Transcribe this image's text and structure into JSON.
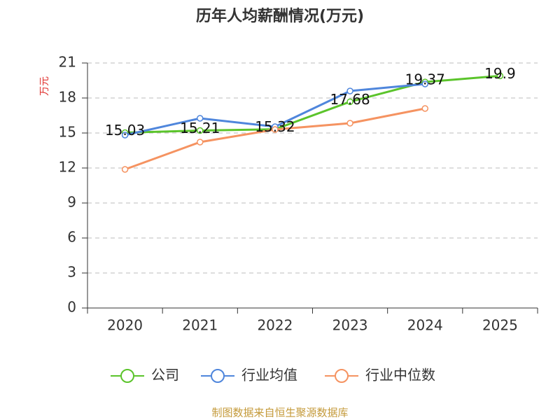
{
  "chart_data": {
    "type": "line",
    "title": "历年人均薪酬情况(万元)",
    "y_label": "万元",
    "categories": [
      "2020",
      "2021",
      "2022",
      "2023",
      "2024",
      "2025"
    ],
    "series": [
      {
        "name": "公司",
        "color": "#5bc42b",
        "values": [
          15.03,
          15.21,
          15.32,
          17.68,
          19.37,
          19.9
        ],
        "show_labels": true
      },
      {
        "name": "行业均值",
        "color": "#4f86dc",
        "values": [
          14.82,
          16.26,
          15.54,
          18.6,
          19.2,
          null
        ],
        "show_labels": false
      },
      {
        "name": "行业中位数",
        "color": "#f59361",
        "values": [
          11.88,
          14.22,
          15.3,
          15.84,
          17.1,
          null
        ],
        "show_labels": false
      }
    ],
    "ylim": [
      0,
      21
    ],
    "yticks": [
      0,
      3,
      6,
      9,
      12,
      15,
      18,
      21
    ],
    "grid": true,
    "source": "制图数据来自恒生聚源数据库"
  }
}
